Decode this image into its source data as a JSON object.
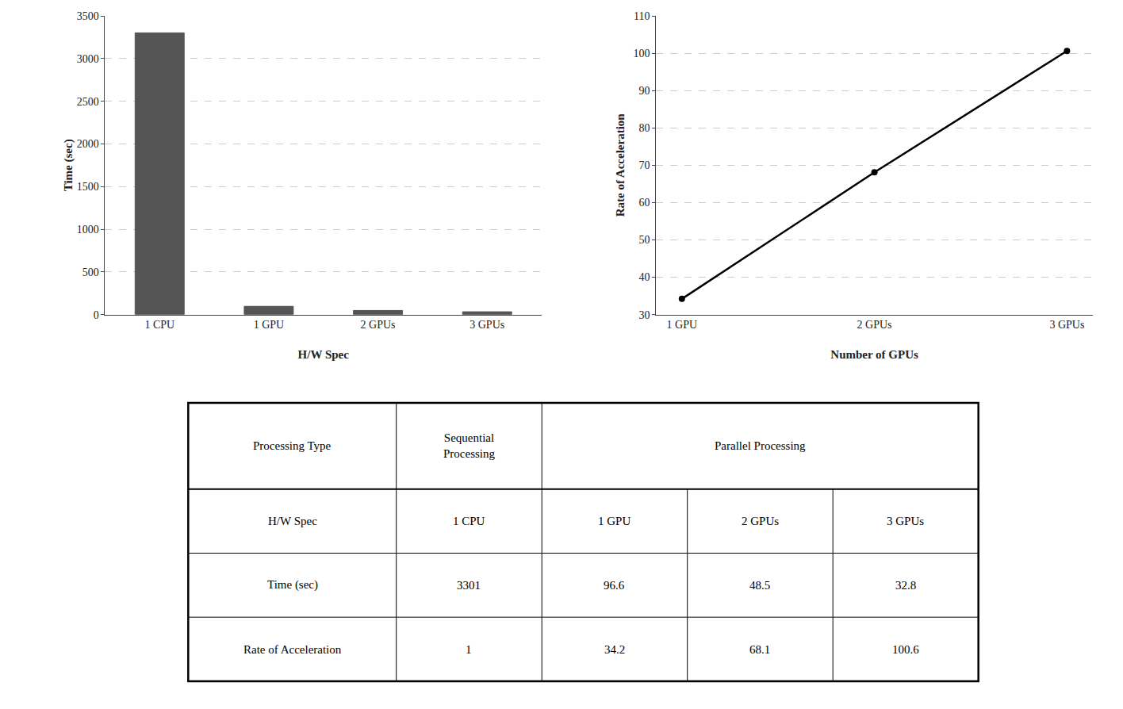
{
  "chart_data": [
    {
      "type": "bar",
      "categories": [
        "1 CPU",
        "1 GPU",
        "2 GPUs",
        "3 GPUs"
      ],
      "values": [
        3301,
        96.6,
        48.5,
        32.8
      ],
      "color": "#555555",
      "xlabel": "H/W Spec",
      "ylabel": "Time (sec)",
      "ylim": [
        0,
        3500
      ],
      "yticks": [
        0,
        500,
        1000,
        1500,
        2000,
        2500,
        3000,
        3500
      ],
      "grid": true
    },
    {
      "type": "line",
      "categories": [
        "1 GPU",
        "2 GPUs",
        "3 GPUs"
      ],
      "values": [
        34.2,
        68.1,
        100.6
      ],
      "color": "#000000",
      "marker": "circle",
      "xlabel": "Number of GPUs",
      "ylabel": "Rate of Acceleration",
      "ylim": [
        30,
        110
      ],
      "yticks": [
        30,
        40,
        50,
        60,
        70,
        80,
        90,
        100,
        110
      ],
      "grid": true
    },
    {
      "type": "table",
      "header": [
        "Processing Type",
        "Sequential\nProcessing",
        "Parallel Processing"
      ],
      "rows": [
        [
          "H/W Spec",
          "1 CPU",
          "1 GPU",
          "2 GPUs",
          "3 GPUs"
        ],
        [
          "Time (sec)",
          "3301",
          "96.6",
          "48.5",
          "32.8"
        ],
        [
          "Rate of Acceleration",
          "1",
          "34.2",
          "68.1",
          "100.6"
        ]
      ]
    }
  ]
}
